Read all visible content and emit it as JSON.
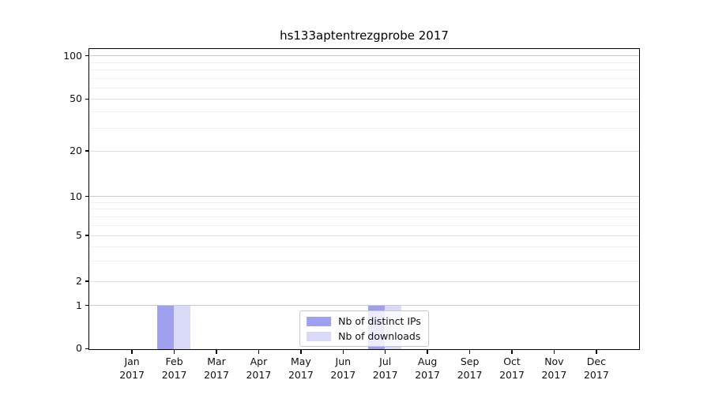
{
  "title": "hs133aptentrezgprobe 2017",
  "chart_data": {
    "type": "bar",
    "title": "hs133aptentrezgprobe 2017",
    "categories": [
      "Jan",
      "Feb",
      "Mar",
      "Apr",
      "May",
      "Jun",
      "Jul",
      "Aug",
      "Sep",
      "Oct",
      "Nov",
      "Dec"
    ],
    "year": "2017",
    "series": [
      {
        "name": "Nb of distinct IPs",
        "color": "#a0a0f0",
        "values": [
          0,
          1,
          0,
          0,
          0,
          0,
          1,
          0,
          0,
          0,
          0,
          0
        ]
      },
      {
        "name": "Nb of downloads",
        "color": "#d9d9f8",
        "values": [
          0,
          1,
          0,
          0,
          0,
          0,
          1,
          0,
          0,
          0,
          0,
          0
        ]
      }
    ],
    "yscale": "symlog",
    "ylim": [
      0,
      110
    ],
    "yticks": [
      0,
      1,
      2,
      5,
      10,
      20,
      50,
      100
    ],
    "yticks_minor": [
      3,
      4,
      6,
      7,
      8,
      9,
      30,
      40,
      60,
      70,
      80,
      90
    ],
    "grid": "horizontal",
    "legend_position": "lower center"
  },
  "colors": {
    "bar_distinct_ips": "#a0a0f0",
    "bar_downloads": "#d9d9f8",
    "grid_decade": "#c9c9c9",
    "grid_sub": "#dedede",
    "grid_minor": "#efefef",
    "spine": "#000000",
    "background": "#ffffff",
    "legend_border": "#c8c8c8",
    "text": "#111111"
  }
}
